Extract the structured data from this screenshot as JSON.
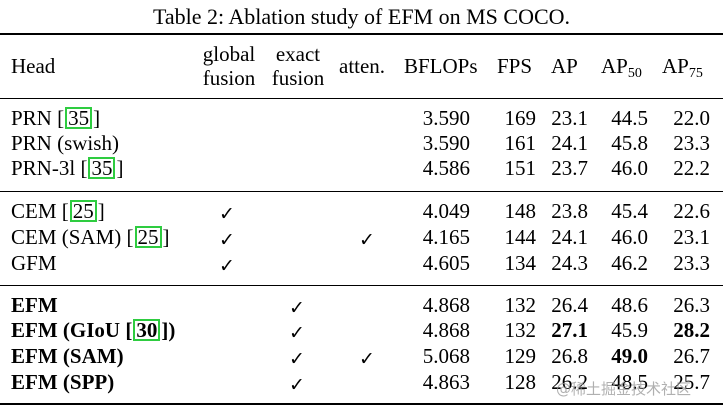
{
  "caption": "Table 2: Ablation study of EFM on MS COCO.",
  "headers": {
    "head": "Head",
    "global_1": "global",
    "global_2": "fusion",
    "exact_1": "exact",
    "exact_2": "fusion",
    "atten": "atten.",
    "bflops": "BFLOPs",
    "fps": "FPS",
    "ap": "AP",
    "ap50_base": "AP",
    "ap50_sub": "50",
    "ap75_base": "AP",
    "ap75_sub": "75"
  },
  "check": "✓",
  "rows": [
    {
      "name_pre": "PRN ",
      "ref": "35",
      "name_post": "",
      "bflops": "3.590",
      "fps": "169",
      "ap": "23.1",
      "ap50": "44.5",
      "ap75": "22.0"
    },
    {
      "name_pre": "PRN (swish)",
      "ref": "",
      "name_post": "",
      "bflops": "3.590",
      "fps": "161",
      "ap": "24.1",
      "ap50": "45.8",
      "ap75": "23.3"
    },
    {
      "name_pre": "PRN-3l ",
      "ref": "35",
      "name_post": "",
      "bflops": "4.586",
      "fps": "151",
      "ap": "23.7",
      "ap50": "46.0",
      "ap75": "22.2"
    },
    {
      "name_pre": "CEM ",
      "ref": "25",
      "name_post": "",
      "bflops": "4.049",
      "fps": "148",
      "ap": "23.8",
      "ap50": "45.4",
      "ap75": "22.6"
    },
    {
      "name_pre": "CEM (SAM) ",
      "ref": "25",
      "name_post": "",
      "bflops": "4.165",
      "fps": "144",
      "ap": "24.1",
      "ap50": "46.0",
      "ap75": "23.1"
    },
    {
      "name_pre": "GFM",
      "ref": "",
      "name_post": "",
      "bflops": "4.605",
      "fps": "134",
      "ap": "24.3",
      "ap50": "46.2",
      "ap75": "23.3"
    },
    {
      "name_pre": "EFM",
      "ref": "",
      "name_post": "",
      "bflops": "4.868",
      "fps": "132",
      "ap": "26.4",
      "ap50": "48.6",
      "ap75": "26.3"
    },
    {
      "name_pre": "EFM (GIoU ",
      "ref": "30",
      "name_post": ")",
      "bflops": "4.868",
      "fps": "132",
      "ap": "27.1",
      "ap50": "45.9",
      "ap75": "28.2"
    },
    {
      "name_pre": "EFM (SAM)",
      "ref": "",
      "name_post": "",
      "bflops": "5.068",
      "fps": "129",
      "ap": "26.8",
      "ap50": "49.0",
      "ap75": "26.7"
    },
    {
      "name_pre": "EFM (SPP)",
      "ref": "",
      "name_post": "",
      "bflops": "4.863",
      "fps": "128",
      "ap": "26.2",
      "ap50": "48.5",
      "ap75": "25.7"
    }
  ],
  "watermark": "@稀土掘金技术社区"
}
